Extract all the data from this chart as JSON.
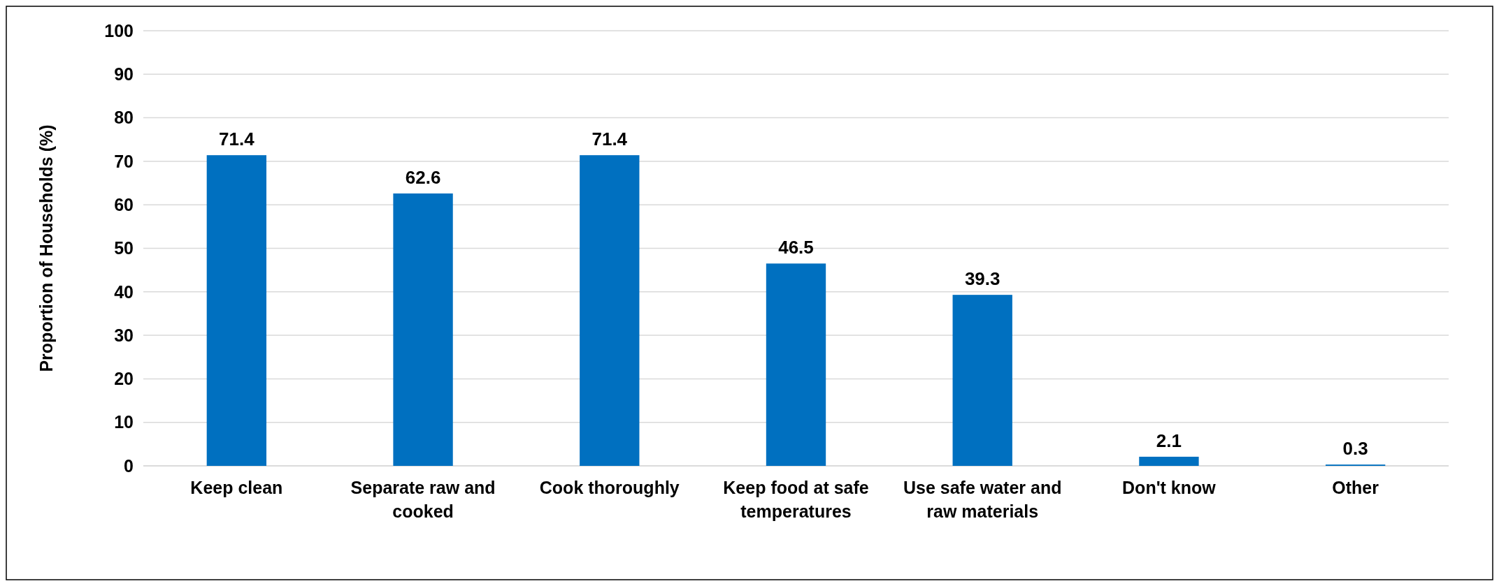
{
  "chart_data": {
    "type": "bar",
    "ylabel": "Proportion of Households  (%)",
    "categories": [
      "Keep clean",
      "Separate raw and cooked",
      "Cook thoroughly",
      "Keep food at safe temperatures",
      "Use safe water and raw materials",
      "Don't know",
      "Other"
    ],
    "values": [
      71.4,
      62.6,
      71.4,
      46.5,
      39.3,
      2.1,
      0.3
    ],
    "color": "#0070c0",
    "ylim": [
      0,
      100
    ],
    "yticks": [
      0,
      10,
      20,
      30,
      40,
      50,
      60,
      70,
      80,
      90,
      100
    ],
    "grid": "y",
    "data_labels": true
  }
}
